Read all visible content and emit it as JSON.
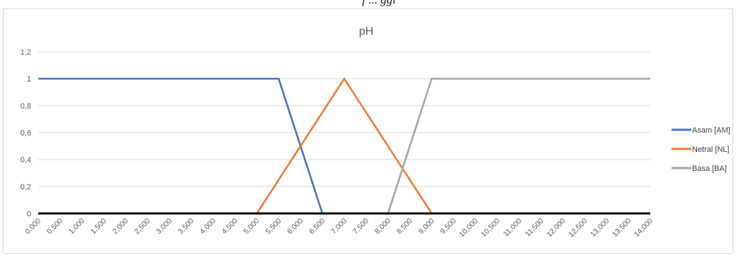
{
  "caption": "f  ... ggi",
  "chart_data": {
    "type": "line",
    "title": "pH",
    "xlabel": "",
    "ylabel": "",
    "categories": [
      "0,000",
      "0,500",
      "1,000",
      "1,500",
      "2,000",
      "2,500",
      "3,000",
      "3,500",
      "4,000",
      "4,500",
      "5,000",
      "5,500",
      "6,000",
      "6,500",
      "7,000",
      "7,500",
      "8,000",
      "8,500",
      "9,000",
      "9,500",
      "10,000",
      "10,500",
      "11,000",
      "11,500",
      "12,000",
      "12,500",
      "13,000",
      "13,500",
      "14,000"
    ],
    "y_ticks": [
      "0",
      "0,2",
      "0,4",
      "0,6",
      "0,8",
      "1",
      "1,2"
    ],
    "ylim": [
      0,
      1.2
    ],
    "xlim": [
      0,
      14
    ],
    "grid": true,
    "legend_position": "right",
    "series": [
      {
        "name": "Asam [AM]",
        "color": "#4472C4",
        "points": [
          [
            0,
            1
          ],
          [
            5.5,
            1
          ],
          [
            6.5,
            0
          ],
          [
            14,
            0
          ]
        ]
      },
      {
        "name": "Netral [NL]",
        "color": "#ED7D31",
        "points": [
          [
            0,
            0
          ],
          [
            5,
            0
          ],
          [
            7,
            1
          ],
          [
            9,
            0
          ],
          [
            14,
            0
          ]
        ]
      },
      {
        "name": "Basa [BA]",
        "color": "#A5A5A5",
        "points": [
          [
            0,
            0
          ],
          [
            8,
            0
          ],
          [
            9,
            1
          ],
          [
            14,
            1
          ]
        ]
      }
    ],
    "baseline": {
      "color": "#000000",
      "points": [
        [
          0,
          0
        ],
        [
          14,
          0
        ]
      ]
    }
  }
}
